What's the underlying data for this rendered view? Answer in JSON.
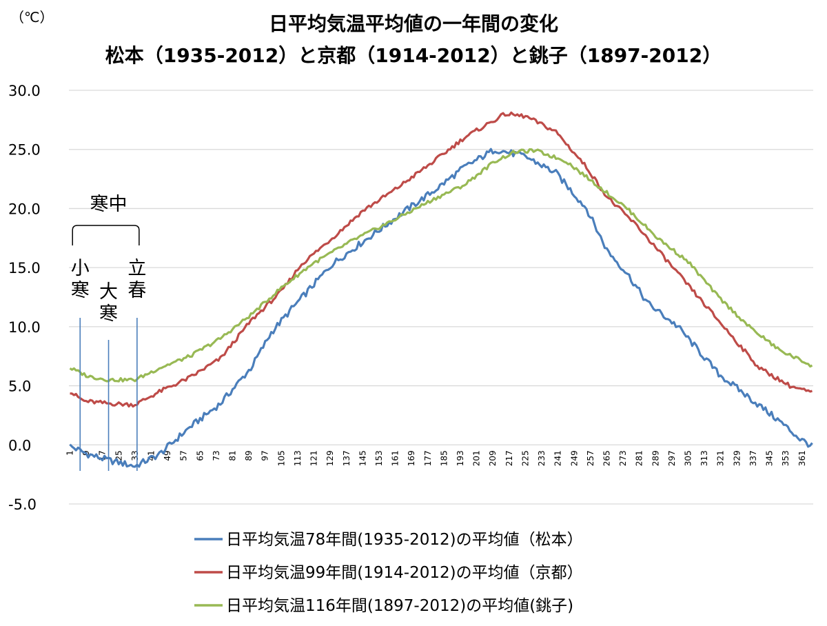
{
  "chart_data": {
    "type": "line",
    "title": "日平均気温平均値の一年間の変化",
    "subtitle": "松本（1935-2012）と京都（1914-2012）と銚子（1897-2012）",
    "unit_label": "（℃）",
    "ylim": [
      -5,
      30
    ],
    "yticks": [
      "30.0",
      "25.0",
      "20.0",
      "15.0",
      "10.0",
      "5.0",
      "0.0",
      "-5.0"
    ],
    "xlim": [
      1,
      366
    ],
    "xticks": [
      "1",
      "9",
      "17",
      "25",
      "33",
      "41",
      "49",
      "57",
      "65",
      "73",
      "81",
      "89",
      "97",
      "105",
      "113",
      "121",
      "129",
      "137",
      "145",
      "153",
      "161",
      "169",
      "177",
      "185",
      "193",
      "201",
      "209",
      "217",
      "225",
      "233",
      "241",
      "249",
      "257",
      "265",
      "273",
      "281",
      "289",
      "297",
      "305",
      "313",
      "321",
      "329",
      "337",
      "345",
      "353",
      "361"
    ],
    "grid": "horizontal",
    "legend_position": "bottom",
    "series": [
      {
        "name": "日平均気温78年間(1935-2012)の平均値（松本）",
        "color": "#4a7ebb",
        "x": [
          1,
          10,
          20,
          33,
          45,
          60,
          75,
          90,
          100,
          110,
          130,
          150,
          165,
          180,
          195,
          210,
          215,
          225,
          240,
          255,
          265,
          275,
          285,
          300,
          310,
          320,
          335,
          350,
          360,
          366
        ],
        "y": [
          -0.1,
          -0.8,
          -1.3,
          -1.8,
          -0.8,
          1.5,
          3.5,
          6.5,
          9.5,
          11.5,
          15.3,
          17.8,
          19.7,
          21.5,
          23.5,
          25.0,
          24.8,
          24.4,
          23.0,
          20.0,
          16.5,
          14.5,
          12.0,
          10.0,
          8.0,
          6.0,
          4.0,
          2.0,
          0.5,
          -0.1
        ]
      },
      {
        "name": "日平均気温99年間(1914-2012)の平均値（京都）",
        "color": "#be4b48",
        "x": [
          1,
          8,
          20,
          33,
          45,
          60,
          75,
          90,
          105,
          115,
          130,
          145,
          160,
          180,
          195,
          210,
          215,
          225,
          240,
          255,
          265,
          280,
          295,
          310,
          325,
          340,
          355,
          366
        ],
        "y": [
          4.5,
          3.7,
          3.5,
          3.4,
          4.5,
          5.7,
          7.3,
          10.5,
          13.0,
          15.3,
          17.5,
          19.8,
          21.5,
          24.0,
          26.0,
          27.5,
          28.0,
          27.8,
          26.5,
          23.5,
          21.0,
          18.5,
          15.5,
          12.5,
          9.5,
          6.5,
          5.0,
          4.4
        ]
      },
      {
        "name": "日平均気温116年間(1897-2012)の平均値(銚子)",
        "color": "#98b954",
        "x": [
          1,
          10,
          20,
          33,
          45,
          60,
          75,
          90,
          105,
          120,
          140,
          160,
          180,
          195,
          210,
          220,
          230,
          245,
          260,
          275,
          290,
          305,
          320,
          335,
          350,
          366
        ],
        "y": [
          6.5,
          5.8,
          5.5,
          5.5,
          6.5,
          7.5,
          9.0,
          11.0,
          13.3,
          15.3,
          17.3,
          19.0,
          20.8,
          22.0,
          24.0,
          24.8,
          24.9,
          24.0,
          22.0,
          20.0,
          17.5,
          15.5,
          12.5,
          10.0,
          8.0,
          6.7
        ]
      }
    ],
    "annotations": [
      {
        "label": "寒中",
        "type": "bracket"
      },
      {
        "label": "小寒",
        "day": 6
      },
      {
        "label": "大寒",
        "day": 20
      },
      {
        "label": "立春",
        "day": 34
      }
    ]
  }
}
